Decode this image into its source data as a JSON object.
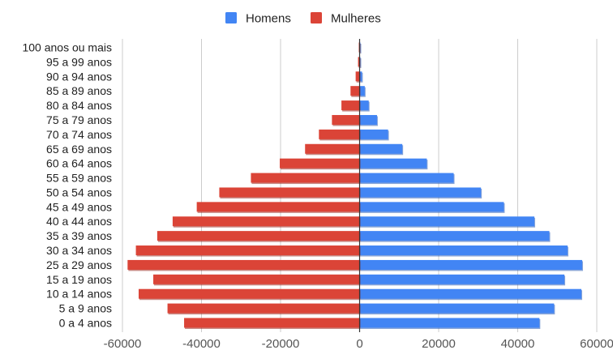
{
  "chart_data": {
    "type": "bar",
    "orientation": "horizontal",
    "categories": [
      "100 anos ou mais",
      "95 a 99 anos",
      "90 a 94 anos",
      "85 a 89 anos",
      "80 a 84 anos",
      "75 a 79 anos",
      "70 a 74 anos",
      "65 a 69 anos",
      "60 a 64 anos",
      "55 a 59 anos",
      "50 a 54 anos",
      "45 a 49 anos",
      "40 a 44 anos",
      "35 a 39 anos",
      "30 a 34 anos",
      "25 a 29 anos",
      "15 a 19 anos",
      "10 a 14 anos",
      "5 a 9 anos",
      "0 a 4 anos"
    ],
    "series": [
      {
        "name": "Homens",
        "color": "#4285f4",
        "values": [
          100,
          200,
          600,
          1300,
          2300,
          4400,
          7200,
          10800,
          17000,
          23800,
          30700,
          36500,
          44200,
          48000,
          52600,
          56300,
          51800,
          56100,
          49200,
          45500
        ]
      },
      {
        "name": "Mulheres",
        "color": "#db4437",
        "values": [
          -200,
          -400,
          -1000,
          -2300,
          -4600,
          -7000,
          -10300,
          -13800,
          -20200,
          -27500,
          -35500,
          -41200,
          -47300,
          -51200,
          -56600,
          -58700,
          -52200,
          -55900,
          -48600,
          -44400
        ]
      }
    ],
    "xticks": [
      "-60000",
      "-40000",
      "-20000",
      "0",
      "20000",
      "40000",
      "60000"
    ],
    "xlim": [
      -60000,
      60000
    ],
    "grid": true,
    "legend_position": "top-center",
    "title": "",
    "xlabel": "",
    "ylabel": ""
  }
}
